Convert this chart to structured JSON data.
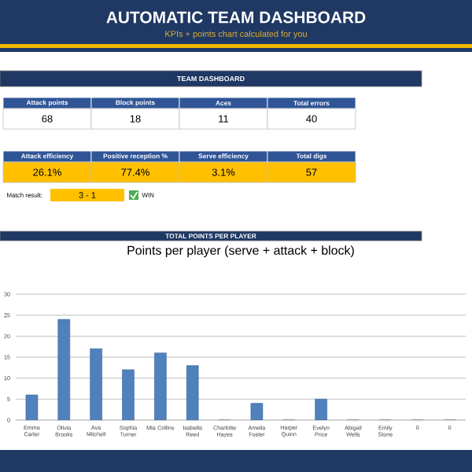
{
  "chart_data": [
    {
      "type": "other",
      "title": "AUTOMATIC TEAM DASHBOARD",
      "subtitle": "KPIs + points chart calculated for you",
      "annotations": [
        "TEAM DASHBOARD",
        "Attack points",
        "Block points",
        "Aces",
        "Total errors",
        "68",
        "18",
        "11",
        "40",
        "Attack efficiency",
        "Positive reception %",
        "Serve efficiency",
        "Total digs",
        "26.1%",
        "77.4%",
        "3.1%",
        "57",
        "Match result:",
        "3 - 1",
        "WIN",
        "TOTAL POINTS PER PLAYER"
      ]
    },
    {
      "type": "bar",
      "title": "Points per player (serve + attack + block)",
      "categories": [
        "Emma Carter",
        "Olivia Brooks",
        "Ava Mitchell",
        "Sophia Turner",
        "Mia Collins",
        "Isabella Reed",
        "Charlotte Hayes",
        "Amelia Foster",
        "Harper Quinn",
        "Evelyn Price",
        "Abigail Wells",
        "Emily Stone",
        "0",
        "0"
      ],
      "values": [
        6,
        24,
        17,
        12,
        16,
        13,
        0,
        4,
        0,
        5,
        0,
        0,
        0,
        0
      ],
      "color": "#4f81bd",
      "ylim": [
        0,
        30
      ],
      "yticks": [
        0,
        5,
        10,
        15,
        20,
        25,
        30
      ],
      "grid": "y"
    }
  ]
}
